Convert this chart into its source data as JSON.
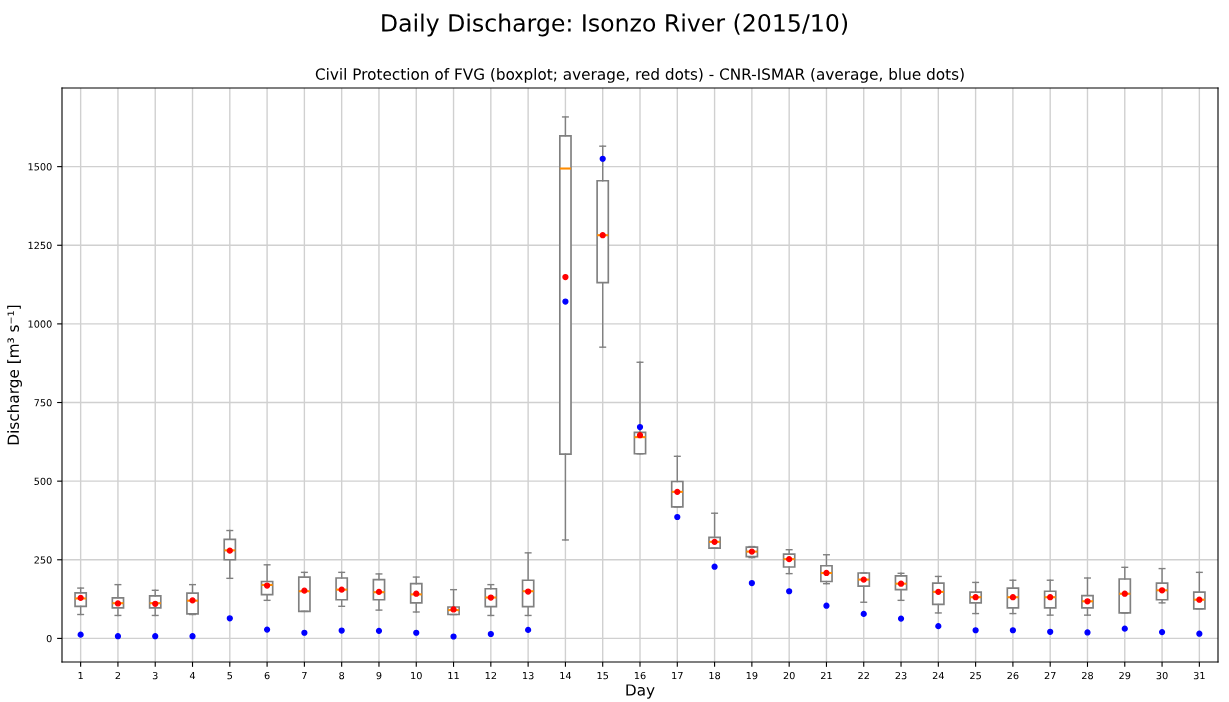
{
  "chart_data": {
    "type": "box",
    "title": "Daily Discharge: Isonzo River (2015/10)",
    "subtitle": "Civil Protection of FVG (boxplot; average, red dots) - CNR-ISMAR (average, blue dots)",
    "xlabel": "Day",
    "ylabel": "Discharge [m³ s⁻¹]",
    "categories": [
      "1",
      "2",
      "3",
      "4",
      "5",
      "6",
      "7",
      "8",
      "9",
      "10",
      "11",
      "12",
      "13",
      "14",
      "15",
      "16",
      "17",
      "18",
      "19",
      "20",
      "21",
      "22",
      "23",
      "24",
      "25",
      "26",
      "27",
      "28",
      "29",
      "30",
      "31"
    ],
    "ylim": [
      -75,
      1750
    ],
    "yticks": [
      0,
      250,
      500,
      750,
      1000,
      1250,
      1500
    ],
    "grid": true,
    "series": [
      {
        "color": "#808080",
        "boxes": [
          {
            "low": 76,
            "q1": 102,
            "median": 127,
            "q3": 145,
            "high": 160,
            "mean": 129
          },
          {
            "low": 73,
            "q1": 97,
            "median": 112,
            "q3": 129,
            "high": 171,
            "mean": 111
          },
          {
            "low": 73,
            "q1": 97,
            "median": 112,
            "q3": 135,
            "high": 153,
            "mean": 110
          },
          {
            "low": 76,
            "q1": 78,
            "median": 120,
            "q3": 144,
            "high": 171,
            "mean": 121
          },
          {
            "low": 191,
            "q1": 250,
            "median": 280,
            "q3": 315,
            "high": 343,
            "mean": 279
          },
          {
            "low": 121,
            "q1": 139,
            "median": 170,
            "q3": 181,
            "high": 234,
            "mean": 168
          },
          {
            "low": 86,
            "q1": 86,
            "median": 150,
            "q3": 195,
            "high": 210,
            "mean": 152
          },
          {
            "low": 102,
            "q1": 123,
            "median": 155,
            "q3": 192,
            "high": 210,
            "mean": 155
          },
          {
            "low": 90,
            "q1": 123,
            "median": 147,
            "q3": 187,
            "high": 205,
            "mean": 148
          },
          {
            "low": 84,
            "q1": 113,
            "median": 140,
            "q3": 174,
            "high": 195,
            "mean": 142
          },
          {
            "low": 76,
            "q1": 76,
            "median": 90,
            "q3": 100,
            "high": 155,
            "mean": 92
          },
          {
            "low": 73,
            "q1": 101,
            "median": 130,
            "q3": 158,
            "high": 171,
            "mean": 130
          },
          {
            "low": 73,
            "q1": 101,
            "median": 150,
            "q3": 185,
            "high": 272,
            "mean": 149
          },
          {
            "low": 313,
            "q1": 586,
            "median": 1494,
            "q3": 1598,
            "high": 1658,
            "mean": 1149
          },
          {
            "low": 926,
            "q1": 1131,
            "median": 1282,
            "q3": 1455,
            "high": 1565,
            "mean": 1282
          },
          {
            "low": 587,
            "q1": 587,
            "median": 640,
            "q3": 655,
            "high": 878,
            "mean": 646
          },
          {
            "low": 418,
            "q1": 418,
            "median": 466,
            "q3": 499,
            "high": 579,
            "mean": 466
          },
          {
            "low": 287,
            "q1": 287,
            "median": 307,
            "q3": 321,
            "high": 398,
            "mean": 307
          },
          {
            "low": 257,
            "q1": 260,
            "median": 276,
            "q3": 290,
            "high": 292,
            "mean": 276
          },
          {
            "low": 206,
            "q1": 227,
            "median": 252,
            "q3": 268,
            "high": 282,
            "mean": 252
          },
          {
            "low": 174,
            "q1": 181,
            "median": 208,
            "q3": 231,
            "high": 266,
            "mean": 208
          },
          {
            "low": 115,
            "q1": 166,
            "median": 187,
            "q3": 208,
            "high": 208,
            "mean": 187
          },
          {
            "low": 121,
            "q1": 155,
            "median": 174,
            "q3": 199,
            "high": 207,
            "mean": 174
          },
          {
            "low": 81,
            "q1": 108,
            "median": 148,
            "q3": 176,
            "high": 197,
            "mean": 148
          },
          {
            "low": 79,
            "q1": 113,
            "median": 131,
            "q3": 147,
            "high": 178,
            "mean": 131
          },
          {
            "low": 79,
            "q1": 97,
            "median": 131,
            "q3": 160,
            "high": 185,
            "mean": 131
          },
          {
            "low": 74,
            "q1": 97,
            "median": 131,
            "q3": 150,
            "high": 185,
            "mean": 131
          },
          {
            "low": 74,
            "q1": 97,
            "median": 118,
            "q3": 136,
            "high": 192,
            "mean": 118
          },
          {
            "low": 81,
            "q1": 81,
            "median": 142,
            "q3": 189,
            "high": 226,
            "mean": 142
          },
          {
            "low": 113,
            "q1": 123,
            "median": 153,
            "q3": 176,
            "high": 222,
            "mean": 153
          },
          {
            "low": 94,
            "q1": 94,
            "median": 123,
            "q3": 147,
            "high": 210,
            "mean": 123
          }
        ]
      },
      {
        "type": "scatter",
        "color": "#0000ff",
        "x": [
          "1",
          "2",
          "3",
          "4",
          "5",
          "6",
          "7",
          "8",
          "9",
          "10",
          "11",
          "12",
          "13",
          "14",
          "15",
          "16",
          "17",
          "18",
          "19",
          "20",
          "21",
          "22",
          "23",
          "24",
          "25",
          "26",
          "27",
          "28",
          "29",
          "30",
          "31"
        ],
        "values": [
          12,
          7,
          7,
          7,
          64,
          28,
          18,
          25,
          24,
          18,
          6,
          14,
          27,
          1071,
          1525,
          672,
          386,
          228,
          176,
          150,
          104,
          78,
          63,
          39,
          26,
          26,
          21,
          19,
          31,
          20,
          15
        ]
      }
    ]
  }
}
